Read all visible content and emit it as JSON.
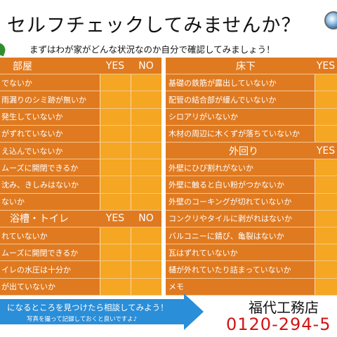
{
  "title": "セルフチェックしてみませんか？",
  "subtitle": "まずはわが家がどんな状況なのか自分で確認してみましょう！",
  "yes_label": "YES",
  "no_label": "NO",
  "room": {
    "title": "部屋",
    "items": [
      "でないか",
      "雨漏りのシミ跡が無いか",
      "発生していないか",
      "がずれていないか",
      "え込んでいないか",
      "ムーズに開閉できるか",
      "沈み、きしみはないか",
      "ないか"
    ]
  },
  "bath": {
    "title": "浴槽・トイレ",
    "items": [
      "れていないか",
      "ムーズに開閉できるか",
      "イレの水圧は十分か",
      "が出ていないか"
    ]
  },
  "floor": {
    "title": "床下",
    "items": [
      "基礎の鉄筋が露出していないか",
      "配管の結合部が緩んでいないか",
      "シロアリがいないか",
      "木材の周辺に木くずが落ちていないか"
    ]
  },
  "exterior": {
    "title": "外回り",
    "items": [
      "外壁にひび割れがないか",
      "外壁に触ると白い粉がつかないか",
      "外壁のコーキングが切れていないか",
      "コンクリやタイルに剥がれはないか",
      "バルコニーに錆び、亀裂はないか",
      "瓦はずれていないか",
      "樋が外れていたり詰まっていないか",
      "メモ"
    ]
  },
  "footer": {
    "arrow_text": "になるところを見つけたら相談してみよう！",
    "arrow_subtext": "写真を撮って記録しておくと良いですよ♪",
    "company": "福代工務店",
    "phone": "0120-294-5"
  },
  "colors": {
    "header_orange": "#e07a20",
    "row_orange": "#e07a20",
    "box_yellow": "#f5a623",
    "arrow_blue": "#2a8ed8",
    "phone_red": "#d21414"
  }
}
